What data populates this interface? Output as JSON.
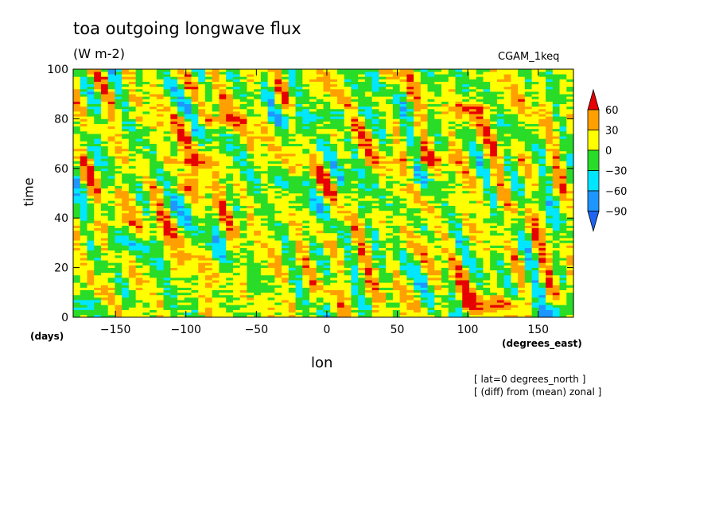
{
  "chart_data": {
    "type": "heatmap",
    "title": "toa outgoing longwave flux",
    "subtitle": "(W m-2)",
    "experiment": "CGAM_1keq",
    "xlabel": "lon",
    "ylabel": "time",
    "x_units": "(degrees_east)",
    "y_units": "(days)",
    "xlim": [
      -180,
      175
    ],
    "ylim": [
      0,
      100
    ],
    "x_ticks": [
      -150,
      -100,
      -50,
      0,
      50,
      100,
      150
    ],
    "x_tick_labels": [
      "−150",
      "−100",
      "−50",
      "0",
      "50",
      "100",
      "150"
    ],
    "y_ticks": [
      0,
      20,
      40,
      60,
      80,
      100
    ],
    "y_tick_labels": [
      "0",
      "20",
      "40",
      "60",
      "80",
      "100"
    ],
    "colorbar": {
      "levels": [
        -90,
        -60,
        -30,
        0,
        30,
        60
      ],
      "level_labels": [
        "−90",
        "−60",
        "−30",
        "0",
        "30",
        "60"
      ],
      "colors": [
        "#1e64f0",
        "#1e96ff",
        "#00e6ff",
        "#28dc28",
        "#ffff00",
        "#ffa000",
        "#e60000"
      ],
      "extend": "both"
    },
    "notes": [
      "[ lat=0 degrees_north ]",
      "[ (diff) from (mean) zonal ]"
    ],
    "features": [
      {
        "lon": 15,
        "time": 82,
        "value": -40
      },
      {
        "lon": -20,
        "time": 80,
        "value": -35
      },
      {
        "lon": 110,
        "time": 84,
        "value": 65
      },
      {
        "lon": -95,
        "time": 63,
        "value": 62
      },
      {
        "lon": -85,
        "time": 79,
        "value": 62
      },
      {
        "lon": 70,
        "time": 64,
        "value": 62
      },
      {
        "lon": 115,
        "time": 5,
        "value": 62
      },
      {
        "lon": -150,
        "time": 38,
        "value": 45
      },
      {
        "lon": -100,
        "time": 52,
        "value": 40
      },
      {
        "lon": 60,
        "time": 55,
        "value": -35
      },
      {
        "lon": 0,
        "time": 45,
        "value": -35
      },
      {
        "lon": -170,
        "time": 5,
        "value": -35
      },
      {
        "lon": 170,
        "time": 3,
        "value": -35
      },
      {
        "lon": 20,
        "time": 10,
        "value": 30
      },
      {
        "lon": -140,
        "time": 30,
        "value": -30
      },
      {
        "lon": -30,
        "time": 55,
        "value": -30
      }
    ]
  }
}
